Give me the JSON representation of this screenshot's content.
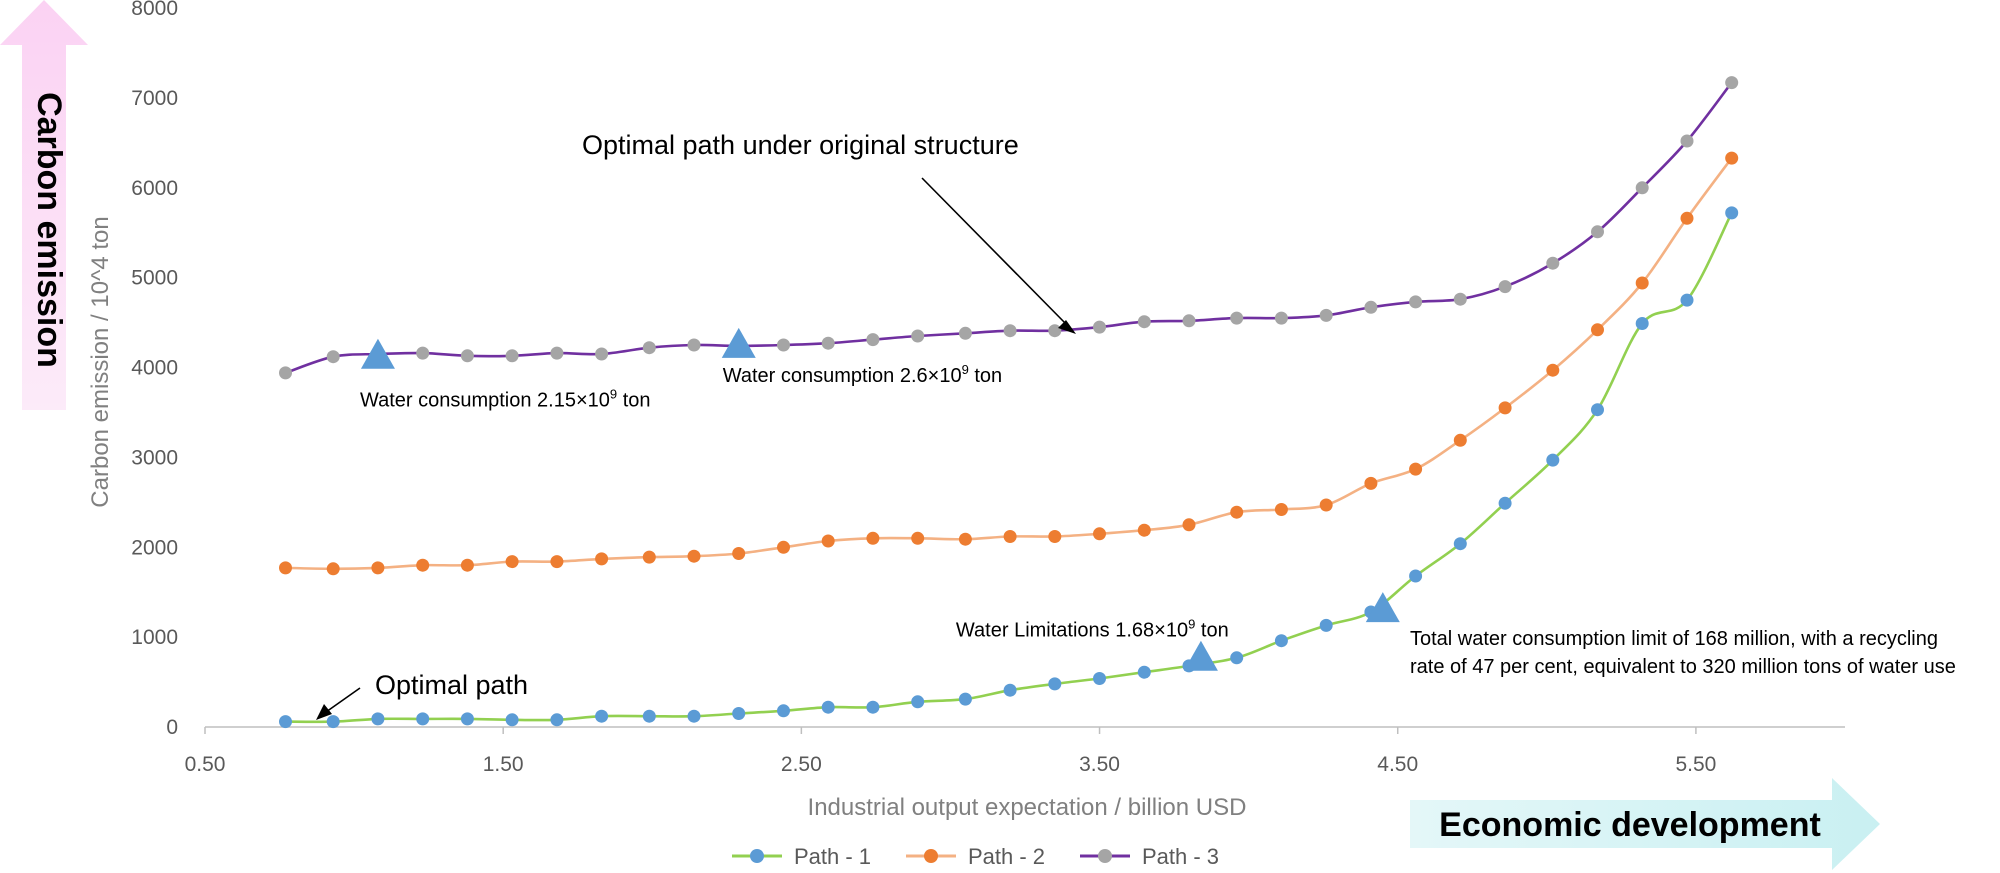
{
  "chart_data": {
    "type": "line",
    "title": "",
    "xlabel": "Industrial output expectation / billion USD",
    "ylabel": "Carbon emission / 10^4 ton",
    "xlim": [
      0.5,
      6.0
    ],
    "ylim": [
      0,
      8000
    ],
    "xticks": [
      "0.50",
      "1.50",
      "2.50",
      "3.50",
      "4.50",
      "5.50"
    ],
    "xtick_values": [
      0.5,
      1.5,
      2.5,
      3.5,
      4.5,
      5.5
    ],
    "yticks": [
      "0",
      "1000",
      "2000",
      "3000",
      "4000",
      "5000",
      "6000",
      "7000",
      "8000"
    ],
    "ytick_values": [
      0,
      1000,
      2000,
      3000,
      4000,
      5000,
      6000,
      7000,
      8000
    ],
    "x": [
      0.77,
      0.93,
      1.08,
      1.23,
      1.38,
      1.53,
      1.68,
      1.83,
      1.99,
      2.14,
      2.29,
      2.44,
      2.59,
      2.74,
      2.89,
      3.05,
      3.2,
      3.35,
      3.5,
      3.65,
      3.8,
      3.96,
      4.11,
      4.26,
      4.41,
      4.56,
      4.71,
      4.86,
      5.02,
      5.17,
      5.32,
      5.47,
      5.62
    ],
    "series": [
      {
        "name": "Path - 1",
        "line_color": "#92d050",
        "marker_color": "#5b9bd5",
        "values": [
          60,
          60,
          90,
          90,
          90,
          80,
          80,
          120,
          120,
          120,
          150,
          180,
          220,
          220,
          280,
          310,
          410,
          480,
          540,
          610,
          680,
          770,
          960,
          1130,
          1280,
          1680,
          2040,
          2490,
          2970,
          3530,
          4490,
          4750,
          5720
        ]
      },
      {
        "name": "Path - 2",
        "line_color": "#f4b183",
        "marker_color": "#ed7d31",
        "values": [
          1770,
          1760,
          1770,
          1800,
          1800,
          1840,
          1840,
          1870,
          1890,
          1900,
          1930,
          2000,
          2070,
          2100,
          2100,
          2090,
          2120,
          2120,
          2150,
          2190,
          2250,
          2390,
          2420,
          2470,
          2710,
          2870,
          3190,
          3550,
          3970,
          4420,
          4940,
          5660,
          6330
        ]
      },
      {
        "name": "Path - 3",
        "line_color": "#7030a0",
        "marker_color": "#a5a5a5",
        "values": [
          3940,
          4120,
          4150,
          4160,
          4130,
          4130,
          4160,
          4150,
          4220,
          4250,
          4240,
          4250,
          4270,
          4310,
          4350,
          4380,
          4410,
          4410,
          4450,
          4510,
          4520,
          4550,
          4550,
          4580,
          4670,
          4730,
          4760,
          4900,
          5160,
          5510,
          6000,
          6520,
          7170
        ]
      }
    ],
    "triangle_markers": [
      {
        "x": 1.08,
        "y": 4120,
        "label_prefix": "Water consumption 2.15×10",
        "label_exp": "9",
        "label_suffix": " ton"
      },
      {
        "x": 2.29,
        "y": 4240,
        "label_prefix": "Water consumption 2.6×10",
        "label_exp": "9",
        "label_suffix": " ton"
      },
      {
        "x": 3.84,
        "y": 760,
        "label_prefix": "Water Limitations 1.68×10",
        "label_exp": "9",
        "label_suffix": " ton"
      },
      {
        "x": 4.45,
        "y": 1300,
        "label_prefix": "",
        "label_exp": "",
        "label_suffix": ""
      }
    ],
    "annotations": {
      "original_structure": "Optimal path under original structure",
      "optimal_path": "Optimal path",
      "water_limit_line1": "Total water consumption limit of 168 million, with a recycling",
      "water_limit_line2": "rate of 47 per cent, equivalent to 320 million tons of water use"
    },
    "side_labels": {
      "carbon_emission": "Carbon emission",
      "economic_development": "Economic development"
    },
    "legend_position": "bottom"
  }
}
